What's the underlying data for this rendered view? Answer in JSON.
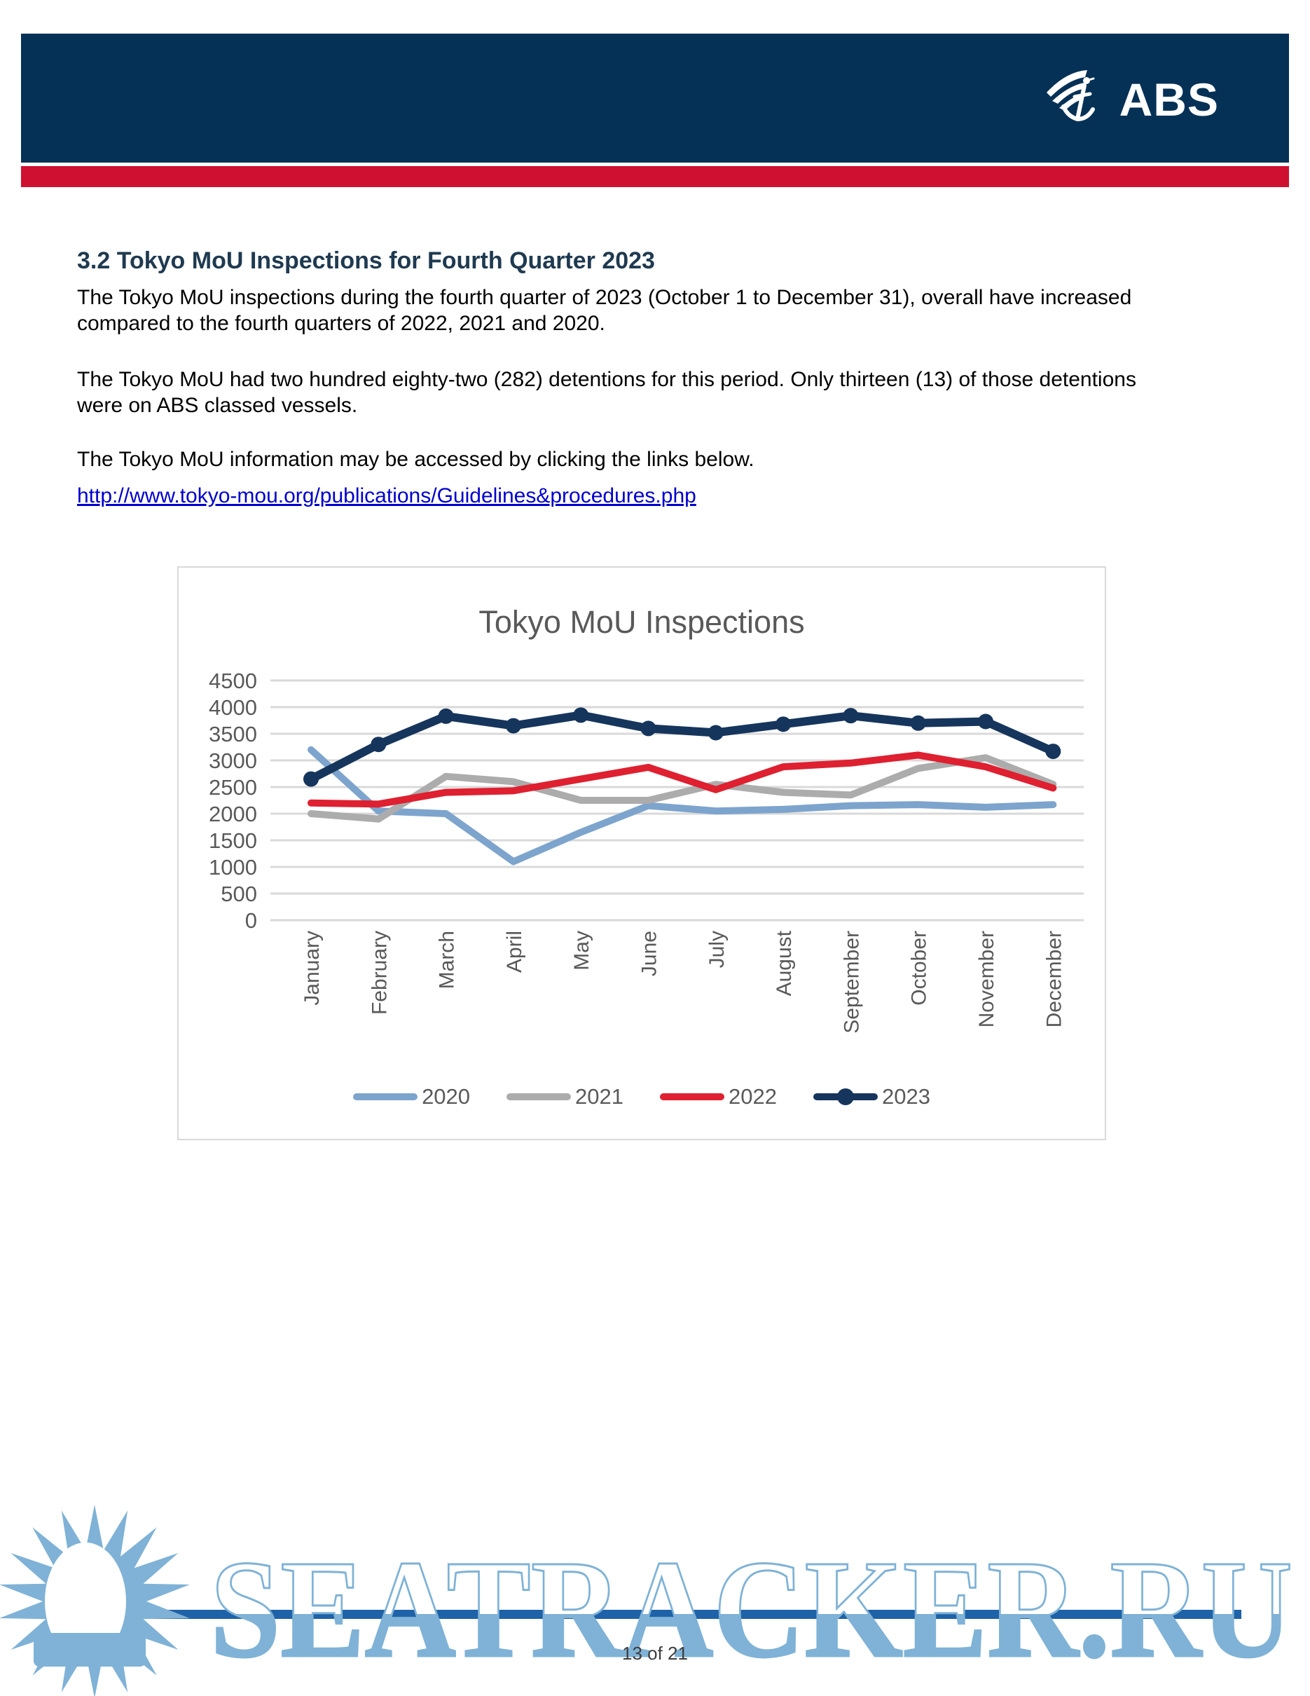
{
  "page": {
    "page_number": "13 of 21"
  },
  "header": {
    "logo_text": "ABS",
    "logo_icon": "eagle-anchor-icon",
    "brand_navy": "#053156",
    "brand_red": "#D01030"
  },
  "article": {
    "heading": "3.2 Tokyo MoU Inspections for Fourth Quarter 2023",
    "paragraph1": "The Tokyo MoU inspections during the fourth quarter of 2023 (October 1 to December 31), overall have increased compared to the fourth quarters of 2022, 2021 and 2020.",
    "paragraph2": "The Tokyo MoU had two hundred eighty-two (282) detentions for this period. Only thirteen (13) of those detentions were on ABS classed vessels.",
    "paragraph3": "The Tokyo MoU information may be accessed by clicking the links below.",
    "link": "http://www.tokyo-mou.org/publications/Guidelines&procedures.php"
  },
  "chart_data": {
    "type": "line",
    "title": "Tokyo MoU Inspections",
    "xlabel": "",
    "ylabel": "",
    "ylim": [
      0,
      4500
    ],
    "ytick_step": 500,
    "grid": true,
    "legend_position": "bottom",
    "categories": [
      "January",
      "February",
      "March",
      "April",
      "May",
      "June",
      "July",
      "August",
      "September",
      "October",
      "November",
      "December"
    ],
    "series": [
      {
        "name": "2020",
        "color": "#7DA4CC",
        "marker": false,
        "values": [
          3200,
          2050,
          2000,
          1100,
          1650,
          2150,
          2050,
          2080,
          2150,
          2170,
          2120,
          2170
        ]
      },
      {
        "name": "2021",
        "color": "#ACACAC",
        "marker": false,
        "values": [
          2000,
          1900,
          2700,
          2600,
          2250,
          2250,
          2550,
          2400,
          2350,
          2850,
          3050,
          2550
        ]
      },
      {
        "name": "2022",
        "color": "#DE2030",
        "marker": false,
        "values": [
          2200,
          2180,
          2400,
          2430,
          2650,
          2870,
          2450,
          2880,
          2950,
          3100,
          2880,
          2480
        ]
      },
      {
        "name": "2023",
        "color": "#16355C",
        "marker": true,
        "values": [
          2650,
          3300,
          3830,
          3650,
          3850,
          3600,
          3520,
          3680,
          3840,
          3700,
          3730,
          3170
        ]
      }
    ]
  },
  "watermark": {
    "text": "SEATRACKER.RU",
    "icon": "sun-icon",
    "color": "#7FB2D6",
    "line_color": "#1E62A8",
    "text_colors": {
      "top_fill": "#FFFFFF",
      "bottom_fill": "#7FB2D6"
    }
  }
}
